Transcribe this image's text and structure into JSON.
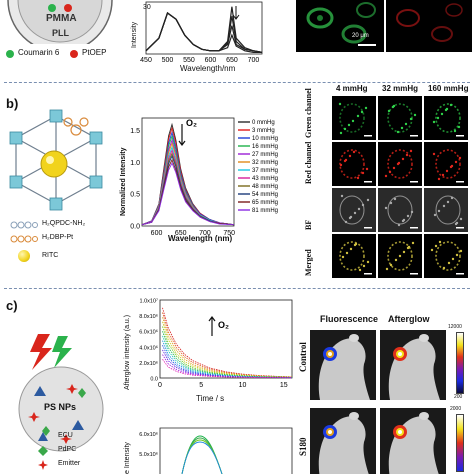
{
  "panel_a": {
    "circle_labels": {
      "pmma": "PMMA",
      "pll": "PLL"
    },
    "legend": [
      {
        "label": "Coumarin 6",
        "color": "#2bb24c"
      },
      {
        "label": "PtOEP",
        "color": "#d9261c"
      }
    ],
    "chart": {
      "ylabel": "Intensity",
      "xlabel": "Wavelength/nm",
      "xticks": [
        "450",
        "500",
        "550",
        "600",
        "650",
        "700"
      ],
      "ytick_top": "30"
    },
    "scale_bar": "20 μm"
  },
  "panel_b": {
    "label": "b)",
    "legend_items": [
      {
        "label": "H₂QPDC-NH₂",
        "color": "#8aa0b8"
      },
      {
        "label": "H₂DBP-Pt",
        "color": "#d98a3a"
      },
      {
        "label": "RITC",
        "color": "#f1d31c"
      }
    ],
    "chart": {
      "ylabel": "Normalized Intensity",
      "xlabel": "Wavelength (nm)",
      "xticks": [
        "600",
        "650",
        "700",
        "750"
      ],
      "yticks": [
        "0.0",
        "0.5",
        "1.0",
        "1.5"
      ],
      "arrow_label": "O₂"
    },
    "col_headers": [
      "4 mmHg",
      "32 mmHg",
      "160 mmHg"
    ],
    "row_labels": [
      "Green channel",
      "Red channel",
      "BF",
      "Merged"
    ]
  },
  "panel_c": {
    "label": "c)",
    "circle_label": "PS NPs",
    "legend": [
      {
        "label": "ECU",
        "color": "#2c5aa0"
      },
      {
        "label": "PdPC",
        "color": "#3aa84a"
      },
      {
        "label": "Emitter",
        "color": "#d9261c"
      }
    ],
    "chart": {
      "ylabel": "Afterglow intensity (a.u.)",
      "xlabel": "Time / s",
      "xticks": [
        "0",
        "5",
        "10",
        "15"
      ],
      "yticks": [
        "1.0x10⁷",
        "8.0x10⁶",
        "6.0x10⁶",
        "4.0x10⁶",
        "2.0x10⁶",
        "0.0"
      ],
      "arrow_label": "O₂"
    },
    "chart2": {
      "ylabel": "e Intensity",
      "ytick_top": "6.0x10⁶",
      "ytick_2": "5.0x10⁶"
    },
    "col_headers": [
      "Fluorescence",
      "Afterglow"
    ],
    "row_labels": [
      "Control",
      "S180"
    ],
    "colorbar1": {
      "top": "12000",
      "bottom": "200"
    },
    "colorbar2": {
      "top": "2000"
    }
  },
  "chart_data": [
    {
      "type": "line",
      "title": "",
      "xlabel": "Wavelength/nm",
      "ylabel": "Intensity",
      "xlim": [
        450,
        720
      ],
      "series": [
        {
          "x": [
            450,
            480,
            500,
            520,
            540,
            560,
            580,
            600,
            620,
            640,
            650,
            660,
            680,
            700,
            720
          ],
          "values": [
            2,
            10,
            26,
            22,
            12,
            6,
            3,
            2,
            2,
            8,
            30,
            10,
            4,
            2,
            1
          ]
        },
        {
          "x": [
            450,
            480,
            500,
            520,
            540,
            560,
            580,
            600,
            620,
            640,
            650,
            660,
            680,
            700,
            720
          ],
          "values": [
            2,
            10,
            26,
            22,
            12,
            6,
            3,
            2,
            2,
            7,
            24,
            8,
            3,
            2,
            1
          ]
        },
        {
          "x": [
            450,
            480,
            500,
            520,
            540,
            560,
            580,
            600,
            620,
            640,
            650,
            660,
            680,
            700,
            720
          ],
          "values": [
            2,
            10,
            26,
            22,
            12,
            6,
            3,
            2,
            2,
            6,
            18,
            6,
            3,
            2,
            1
          ]
        },
        {
          "x": [
            450,
            480,
            500,
            520,
            540,
            560,
            580,
            600,
            620,
            640,
            650,
            660,
            680,
            700,
            720
          ],
          "values": [
            2,
            10,
            26,
            22,
            12,
            6,
            3,
            2,
            2,
            4,
            12,
            5,
            2,
            1,
            1
          ]
        }
      ]
    },
    {
      "type": "line",
      "title": "",
      "xlabel": "Wavelength (nm)",
      "ylabel": "Normalized Intensity",
      "xlim": [
        570,
        760
      ],
      "ylim": [
        0,
        1.7
      ],
      "x": [
        570,
        590,
        605,
        615,
        625,
        632,
        640,
        650,
        660,
        675,
        690,
        710,
        730,
        760
      ],
      "series": [
        {
          "name": "0 mmHg",
          "values": [
            0.02,
            0.08,
            0.35,
            0.9,
            1.42,
            1.6,
            1.35,
            0.9,
            0.6,
            0.35,
            0.2,
            0.1,
            0.05,
            0.02
          ]
        },
        {
          "name": "3 mmHg",
          "values": [
            0.02,
            0.08,
            0.34,
            0.87,
            1.37,
            1.54,
            1.3,
            0.87,
            0.58,
            0.34,
            0.2,
            0.1,
            0.05,
            0.02
          ]
        },
        {
          "name": "10 mmHg",
          "values": [
            0.02,
            0.08,
            0.33,
            0.83,
            1.31,
            1.47,
            1.24,
            0.83,
            0.56,
            0.33,
            0.19,
            0.1,
            0.05,
            0.02
          ]
        },
        {
          "name": "16 mmHg",
          "values": [
            0.02,
            0.07,
            0.32,
            0.8,
            1.26,
            1.41,
            1.19,
            0.8,
            0.54,
            0.32,
            0.18,
            0.09,
            0.05,
            0.02
          ]
        },
        {
          "name": "27 mmHg",
          "values": [
            0.02,
            0.07,
            0.31,
            0.77,
            1.2,
            1.35,
            1.14,
            0.77,
            0.52,
            0.31,
            0.18,
            0.09,
            0.05,
            0.02
          ]
        },
        {
          "name": "32 mmHg",
          "values": [
            0.02,
            0.07,
            0.3,
            0.74,
            1.15,
            1.3,
            1.1,
            0.74,
            0.5,
            0.3,
            0.17,
            0.09,
            0.04,
            0.02
          ]
        },
        {
          "name": "37 mmHg",
          "values": [
            0.02,
            0.07,
            0.29,
            0.71,
            1.1,
            1.24,
            1.05,
            0.71,
            0.48,
            0.29,
            0.17,
            0.09,
            0.04,
            0.02
          ]
        },
        {
          "name": "43 mmHg",
          "values": [
            0.02,
            0.07,
            0.28,
            0.68,
            1.06,
            1.19,
            1.01,
            0.68,
            0.46,
            0.28,
            0.16,
            0.08,
            0.04,
            0.02
          ]
        },
        {
          "name": "48 mmHg",
          "values": [
            0.02,
            0.06,
            0.27,
            0.65,
            1.02,
            1.14,
            0.97,
            0.65,
            0.44,
            0.27,
            0.16,
            0.08,
            0.04,
            0.02
          ]
        },
        {
          "name": "54 mmHg",
          "values": [
            0.02,
            0.06,
            0.26,
            0.63,
            0.98,
            1.1,
            0.93,
            0.63,
            0.42,
            0.26,
            0.15,
            0.08,
            0.04,
            0.02
          ]
        },
        {
          "name": "65 mmHg",
          "values": [
            0.02,
            0.06,
            0.25,
            0.6,
            0.93,
            1.04,
            0.88,
            0.6,
            0.4,
            0.25,
            0.14,
            0.07,
            0.04,
            0.02
          ]
        },
        {
          "name": "81 mmHg",
          "values": [
            0.02,
            0.06,
            0.24,
            0.57,
            0.88,
            0.99,
            0.84,
            0.57,
            0.38,
            0.24,
            0.14,
            0.07,
            0.03,
            0.02
          ]
        }
      ],
      "colors": [
        "#2b2b2b",
        "#e01b1b",
        "#1f3fd6",
        "#1fb24a",
        "#9b1fd6",
        "#e08a1b",
        "#1bc8e0",
        "#d61f9b",
        "#7a6a1b",
        "#1b3a7a",
        "#7a1b1b",
        "#8a2be2"
      ]
    },
    {
      "type": "line",
      "title": "",
      "xlabel": "Time / s",
      "ylabel": "Afterglow intensity (a.u.)",
      "xlim": [
        0,
        16
      ],
      "ylim": [
        0,
        10000000
      ],
      "x": [
        0.3,
        1,
        2,
        3,
        4,
        6,
        8,
        10,
        12,
        14,
        16
      ],
      "series": [
        {
          "values": [
            9000000,
            6400000,
            4300000,
            3000000,
            2200000,
            1300000,
            800000,
            500000,
            320000,
            220000,
            150000
          ]
        },
        {
          "values": [
            8400000,
            5900000,
            3900000,
            2700000,
            1950000,
            1150000,
            700000,
            440000,
            290000,
            200000,
            130000
          ]
        },
        {
          "values": [
            7800000,
            5400000,
            3500000,
            2400000,
            1700000,
            1000000,
            610000,
            380000,
            250000,
            170000,
            120000
          ]
        },
        {
          "values": [
            7200000,
            4900000,
            3100000,
            2100000,
            1500000,
            880000,
            530000,
            330000,
            220000,
            150000,
            100000
          ]
        },
        {
          "values": [
            6600000,
            4400000,
            2800000,
            1850000,
            1300000,
            760000,
            460000,
            290000,
            190000,
            130000,
            90000
          ]
        },
        {
          "values": [
            6000000,
            3900000,
            2450000,
            1600000,
            1120000,
            650000,
            390000,
            250000,
            160000,
            110000,
            80000
          ]
        },
        {
          "values": [
            5400000,
            3450000,
            2150000,
            1400000,
            970000,
            560000,
            340000,
            210000,
            140000,
            100000,
            70000
          ]
        },
        {
          "values": [
            4800000,
            3000000,
            1850000,
            1200000,
            830000,
            480000,
            290000,
            180000,
            120000,
            90000,
            60000
          ]
        },
        {
          "values": [
            4200000,
            2600000,
            1580000,
            1020000,
            700000,
            400000,
            240000,
            150000,
            100000,
            80000,
            50000
          ]
        },
        {
          "values": [
            3600000,
            2200000,
            1330000,
            850000,
            580000,
            330000,
            200000,
            130000,
            90000,
            70000,
            40000
          ]
        },
        {
          "values": [
            3000000,
            1800000,
            1080000,
            690000,
            470000,
            270000,
            160000,
            110000,
            80000,
            60000,
            30000
          ]
        },
        {
          "values": [
            2400000,
            1400000,
            840000,
            530000,
            360000,
            210000,
            130000,
            90000,
            70000,
            50000,
            20000
          ]
        }
      ],
      "colors": [
        "#d61f1f",
        "#e05a1b",
        "#e0a01b",
        "#c8c81b",
        "#6ac81b",
        "#1bb24a",
        "#1bc8b2",
        "#1b8ae0",
        "#1b4ae0",
        "#5a1be0",
        "#a01be0",
        "#e01bb2"
      ]
    }
  ]
}
